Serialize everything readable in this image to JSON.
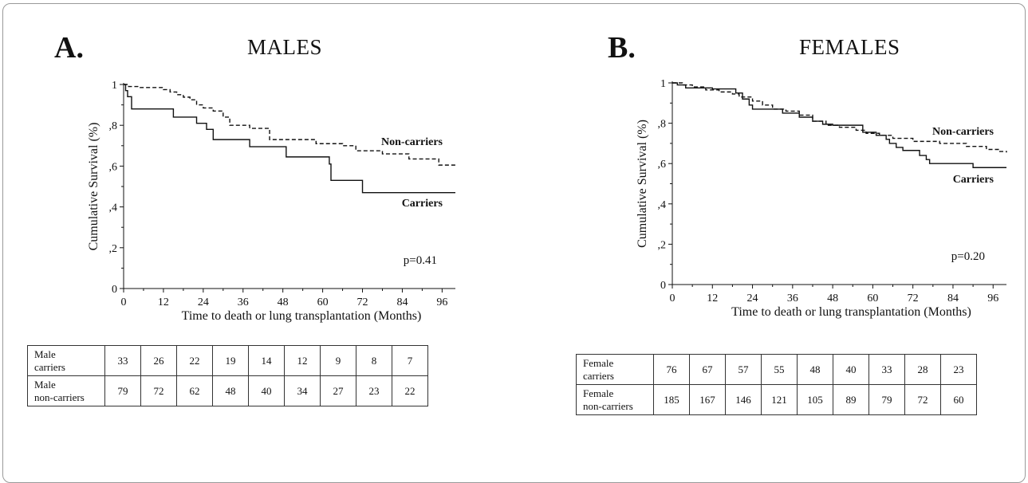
{
  "panels": [
    {
      "letter": "A.",
      "title": "MALES",
      "pvalue": "p=0.41",
      "table_rows": [
        {
          "label": [
            "Male",
            "carriers"
          ],
          "values": [
            33,
            26,
            22,
            19,
            14,
            12,
            9,
            8,
            7
          ]
        },
        {
          "label": [
            "Male",
            "non-carriers"
          ],
          "values": [
            79,
            72,
            62,
            48,
            40,
            34,
            27,
            23,
            22
          ]
        }
      ]
    },
    {
      "letter": "B.",
      "title": "FEMALES",
      "pvalue": "p=0.20",
      "table_rows": [
        {
          "label": [
            "Female",
            "carriers"
          ],
          "values": [
            76,
            67,
            57,
            55,
            48,
            40,
            33,
            28,
            23
          ]
        },
        {
          "label": [
            "Female",
            "non-carriers"
          ],
          "values": [
            185,
            167,
            146,
            121,
            105,
            89,
            79,
            72,
            60
          ]
        }
      ]
    }
  ],
  "chart_data": [
    {
      "type": "line",
      "step": true,
      "title": "MALES",
      "xlabel": "Time to death or lung transplantation (Months)",
      "ylabel": "Cumulative Survival (%)",
      "xlim": [
        0,
        100
      ],
      "ylim": [
        0,
        1
      ],
      "xticks": [
        0,
        12,
        24,
        36,
        48,
        60,
        72,
        84,
        96
      ],
      "xtick_labels": [
        "0",
        "12",
        "24",
        "36",
        "48",
        "60",
        "72",
        "84",
        "96"
      ],
      "yticks": [
        0,
        0.2,
        0.4,
        0.6,
        0.8,
        1
      ],
      "ytick_labels": [
        "0",
        ",2",
        ",4",
        ",6",
        ",8",
        "1"
      ],
      "series": [
        {
          "name": "Non-carriers",
          "dash": true,
          "points": [
            [
              0,
              1
            ],
            [
              1.5,
              0.99
            ],
            [
              5,
              0.985
            ],
            [
              12,
              0.975
            ],
            [
              14,
              0.963
            ],
            [
              16,
              0.95
            ],
            [
              18,
              0.938
            ],
            [
              20,
              0.925
            ],
            [
              22,
              0.9
            ],
            [
              24,
              0.885
            ],
            [
              27,
              0.87
            ],
            [
              30,
              0.84
            ],
            [
              32,
              0.8
            ],
            [
              38,
              0.785
            ],
            [
              44,
              0.73
            ],
            [
              58,
              0.71
            ],
            [
              66,
              0.7
            ],
            [
              70,
              0.675
            ],
            [
              78,
              0.66
            ],
            [
              86,
              0.635
            ],
            [
              95,
              0.605
            ],
            [
              100,
              0.6
            ]
          ]
        },
        {
          "name": "Carriers",
          "dash": false,
          "points": [
            [
              0,
              1
            ],
            [
              0.6,
              0.97
            ],
            [
              1.2,
              0.94
            ],
            [
              2.4,
              0.88
            ],
            [
              15,
              0.84
            ],
            [
              22,
              0.81
            ],
            [
              25,
              0.78
            ],
            [
              27,
              0.73
            ],
            [
              38,
              0.695
            ],
            [
              49,
              0.645
            ],
            [
              62,
              0.61
            ],
            [
              62.5,
              0.53
            ],
            [
              72,
              0.47
            ],
            [
              100,
              0.47
            ]
          ]
        }
      ],
      "annotations": [
        "p=0.41"
      ]
    },
    {
      "type": "line",
      "step": true,
      "title": "FEMALES",
      "xlabel": "Time to death or lung transplantation (Months)",
      "ylabel": "Cumulative Survival (%)",
      "xlim": [
        0,
        100
      ],
      "ylim": [
        0,
        1
      ],
      "xticks": [
        0,
        12,
        24,
        36,
        48,
        60,
        72,
        84,
        96
      ],
      "xtick_labels": [
        "0",
        "12",
        "24",
        "36",
        "48",
        "60",
        "72",
        "84",
        "96"
      ],
      "yticks": [
        0,
        0.2,
        0.4,
        0.6,
        0.8,
        1
      ],
      "ytick_labels": [
        "0",
        ",2",
        ",4",
        ",6",
        ",8",
        "1"
      ],
      "series": [
        {
          "name": "Non-carriers",
          "dash": true,
          "points": [
            [
              0,
              1
            ],
            [
              3,
              0.99
            ],
            [
              6,
              0.98
            ],
            [
              10,
              0.965
            ],
            [
              14,
              0.955
            ],
            [
              18,
              0.945
            ],
            [
              20,
              0.93
            ],
            [
              24,
              0.91
            ],
            [
              27,
              0.89
            ],
            [
              30,
              0.87
            ],
            [
              34,
              0.86
            ],
            [
              38,
              0.84
            ],
            [
              42,
              0.81
            ],
            [
              46,
              0.79
            ],
            [
              50,
              0.78
            ],
            [
              55,
              0.765
            ],
            [
              58,
              0.75
            ],
            [
              62,
              0.74
            ],
            [
              66,
              0.725
            ],
            [
              72,
              0.71
            ],
            [
              80,
              0.7
            ],
            [
              88,
              0.685
            ],
            [
              94,
              0.67
            ],
            [
              98,
              0.66
            ],
            [
              100,
              0.655
            ]
          ]
        },
        {
          "name": "Carriers",
          "dash": false,
          "points": [
            [
              0,
              1
            ],
            [
              1.5,
              0.99
            ],
            [
              4,
              0.975
            ],
            [
              12,
              0.97
            ],
            [
              19,
              0.95
            ],
            [
              21,
              0.92
            ],
            [
              23,
              0.89
            ],
            [
              24,
              0.87
            ],
            [
              33,
              0.85
            ],
            [
              38,
              0.83
            ],
            [
              42,
              0.81
            ],
            [
              45,
              0.795
            ],
            [
              48,
              0.79
            ],
            [
              57,
              0.755
            ],
            [
              61,
              0.74
            ],
            [
              64,
              0.72
            ],
            [
              65,
              0.7
            ],
            [
              67,
              0.68
            ],
            [
              69,
              0.665
            ],
            [
              74,
              0.64
            ],
            [
              76,
              0.62
            ],
            [
              77,
              0.6
            ],
            [
              90,
              0.58
            ],
            [
              100,
              0.58
            ]
          ]
        }
      ],
      "annotations": [
        "p=0.20"
      ]
    }
  ]
}
